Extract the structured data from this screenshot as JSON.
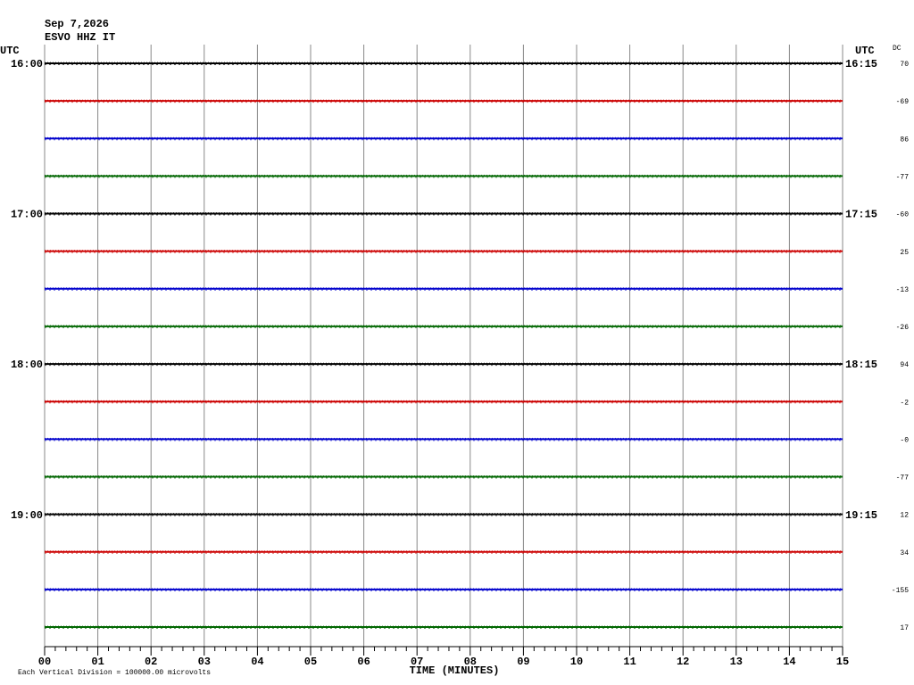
{
  "header": {
    "date": "Sep 7,2026",
    "station": "ESVO HHZ IT"
  },
  "chart_data": {
    "type": "helicorder",
    "left_axis_label": "UTC",
    "right_axis_label": "UTC",
    "dc_label": "DC",
    "left_labels": [
      "16:00",
      null,
      null,
      null,
      "17:00",
      null,
      null,
      null,
      "18:00",
      null,
      null,
      null,
      "19:00",
      null,
      null,
      null
    ],
    "right_labels": [
      "16:15",
      null,
      null,
      null,
      "17:15",
      null,
      null,
      null,
      "18:15",
      null,
      null,
      null,
      "19:15",
      null,
      null,
      null
    ],
    "dc": {
      "values": [
        70,
        -69,
        86,
        -77,
        -60,
        25,
        -13,
        -26,
        94,
        -2,
        0,
        -77,
        12,
        34,
        -155,
        17
      ],
      "value_labels": [
        "70",
        "-69",
        "86",
        "-77",
        "-60",
        "25",
        "-13",
        "-26",
        "94",
        "-2",
        "-0",
        "-77",
        "12",
        "34",
        "-155",
        "17"
      ]
    },
    "colors": [
      "#000000",
      "#cc0000",
      "#0000cc",
      "#006600"
    ],
    "xlabel": "TIME (MINUTES)",
    "xlim": [
      0,
      15
    ],
    "xticks": [
      {
        "value": 0,
        "label": "00"
      },
      {
        "value": 1,
        "label": "01"
      },
      {
        "value": 2,
        "label": "02"
      },
      {
        "value": 3,
        "label": "03"
      },
      {
        "value": 4,
        "label": "04"
      },
      {
        "value": 5,
        "label": "05"
      },
      {
        "value": 6,
        "label": "06"
      },
      {
        "value": 7,
        "label": "07"
      },
      {
        "value": 8,
        "label": "08"
      },
      {
        "value": 9,
        "label": "09"
      },
      {
        "value": 10,
        "label": "10"
      },
      {
        "value": 11,
        "label": "11"
      },
      {
        "value": 12,
        "label": "12"
      },
      {
        "value": 13,
        "label": "13"
      },
      {
        "value": 14,
        "label": "14"
      },
      {
        "value": 15,
        "label": "15"
      }
    ],
    "grid": true,
    "footnote": "Each Vertical Division = 100000.00 microvolts"
  }
}
